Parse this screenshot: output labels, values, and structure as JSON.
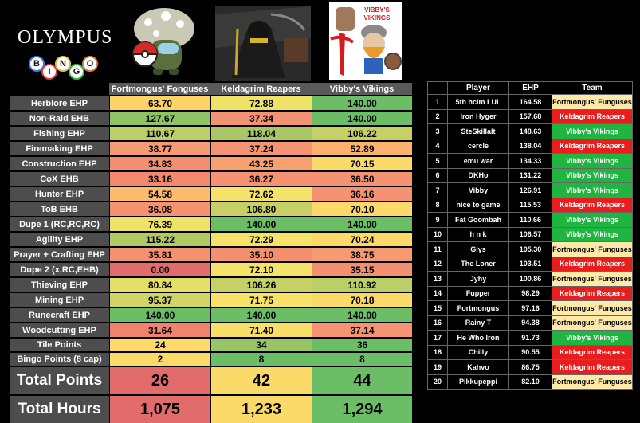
{
  "logo": {
    "word": "OLYMPUS",
    "balls": [
      "B",
      "I",
      "N",
      "G",
      "O"
    ]
  },
  "team_images": [
    {
      "name": "Fortmongus' Fonguses logo"
    },
    {
      "name": "Keldagrim Reapers logo"
    },
    {
      "name": "Vibby's Vikings logo",
      "caption": "VIBBY'S VIKINGS"
    }
  ],
  "teams": [
    "Fortmongus' Fonguses",
    "Keldagrim Reapers",
    "Vibby's Vikings"
  ],
  "rows": [
    {
      "label": "Herblore EHP",
      "values": [
        "63.70",
        "72.88",
        "140.00"
      ],
      "colors": [
        "#fdd365",
        "#eee366",
        "#6bbe66"
      ]
    },
    {
      "label": "Non-Raid EHB",
      "values": [
        "127.67",
        "37.34",
        "140.00"
      ],
      "colors": [
        "#8fc464",
        "#f29474",
        "#6bbe66"
      ]
    },
    {
      "label": "Fishing EHP",
      "values": [
        "110.67",
        "118.04",
        "106.22"
      ],
      "colors": [
        "#bcce67",
        "#a9c865",
        "#c6d067"
      ]
    },
    {
      "label": "Firemaking EHP",
      "values": [
        "38.77",
        "37.24",
        "52.89"
      ],
      "colors": [
        "#f59a73",
        "#f49472",
        "#fcb16c"
      ]
    },
    {
      "label": "Construction EHP",
      "values": [
        "34.83",
        "43.25",
        "70.15"
      ],
      "colors": [
        "#f39070",
        "#f6a16f",
        "#fcda69"
      ]
    },
    {
      "label": "CoX EHB",
      "values": [
        "33.16",
        "36.27",
        "36.50"
      ],
      "colors": [
        "#f2896f",
        "#f49272",
        "#f49372"
      ]
    },
    {
      "label": "Hunter EHP",
      "values": [
        "54.58",
        "72.62",
        "36.16"
      ],
      "colors": [
        "#fcbc6c",
        "#f5e369",
        "#f49272"
      ]
    },
    {
      "label": "ToB EHB",
      "values": [
        "36.08",
        "106.80",
        "70.10"
      ],
      "colors": [
        "#f49272",
        "#c6d067",
        "#fcda69"
      ]
    },
    {
      "label": "Dupe 1 (RC,RC,RC)",
      "values": [
        "76.39",
        "140.00",
        "140.00"
      ],
      "colors": [
        "#eee366",
        "#6bbe66",
        "#6bbe66"
      ]
    },
    {
      "label": "Agility EHP",
      "values": [
        "115.22",
        "72.29",
        "70.24"
      ],
      "colors": [
        "#b1ca66",
        "#f5e369",
        "#fcda69"
      ]
    },
    {
      "label": "Prayer + Crafting EHP",
      "values": [
        "35.81",
        "35.10",
        "38.75"
      ],
      "colors": [
        "#f49171",
        "#f39070",
        "#f59a73"
      ]
    },
    {
      "label": "Dupe 2 (x,RC,EHB)",
      "values": [
        "0.00",
        "72.10",
        "35.15"
      ],
      "colors": [
        "#e26c6c",
        "#f5e369",
        "#f39070"
      ]
    },
    {
      "label": "Thieving EHP",
      "values": [
        "80.84",
        "106.26",
        "110.92"
      ],
      "colors": [
        "#e5de66",
        "#c6d067",
        "#bcce67"
      ]
    },
    {
      "label": "Mining EHP",
      "values": [
        "95.37",
        "71.75",
        "70.18"
      ],
      "colors": [
        "#d2d467",
        "#f7e169",
        "#fcda69"
      ]
    },
    {
      "label": "Runecraft EHP",
      "values": [
        "140.00",
        "140.00",
        "140.00"
      ],
      "colors": [
        "#6bbe66",
        "#6bbe66",
        "#6bbe66"
      ]
    },
    {
      "label": "Woodcutting EHP",
      "values": [
        "31.64",
        "71.40",
        "37.14"
      ],
      "colors": [
        "#f1836e",
        "#f8df69",
        "#f49472"
      ]
    },
    {
      "label": "Tile Points",
      "values": [
        "24",
        "34",
        "36"
      ],
      "colors": [
        "#fcda69",
        "#97c566",
        "#6bbe66"
      ],
      "small": true
    },
    {
      "label": "Bingo Points (8 cap)",
      "values": [
        "2",
        "8",
        "8"
      ],
      "colors": [
        "#fcda69",
        "#6bbe66",
        "#6bbe66"
      ],
      "small": true
    },
    {
      "label": "Total Points",
      "values": [
        "26",
        "42",
        "44"
      ],
      "colors": [
        "#e26c6c",
        "#fcda69",
        "#6bbe66"
      ],
      "big": true
    },
    {
      "label": "Total Hours",
      "values": [
        "1,075",
        "1,233",
        "1,294"
      ],
      "colors": [
        "#e26c6c",
        "#fcda69",
        "#6bbe66"
      ],
      "big": true
    }
  ],
  "leaderboard": {
    "headers": [
      "Player",
      "EHP",
      "Team"
    ],
    "rows": [
      {
        "rank": "1",
        "player": "5th hcim LUL",
        "ehp": "164.58",
        "team": "Fortmongus' Funguses",
        "t": "f"
      },
      {
        "rank": "2",
        "player": "Iron Hyger",
        "ehp": "157.68",
        "team": "Keldagrim Reapers",
        "t": "k"
      },
      {
        "rank": "3",
        "player": "SteSkillalt",
        "ehp": "148.63",
        "team": "Vibby's Vikings",
        "t": "v"
      },
      {
        "rank": "4",
        "player": "cercle",
        "ehp": "138.04",
        "team": "Keldagrim Reapers",
        "t": "k"
      },
      {
        "rank": "5",
        "player": "emu war",
        "ehp": "134.33",
        "team": "Vibby's Vikings",
        "t": "v"
      },
      {
        "rank": "6",
        "player": "DKHo",
        "ehp": "131.22",
        "team": "Vibby's Vikings",
        "t": "v"
      },
      {
        "rank": "7",
        "player": "Vibby",
        "ehp": "126.91",
        "team": "Vibby's Vikings",
        "t": "v"
      },
      {
        "rank": "8",
        "player": "nice to game",
        "ehp": "115.53",
        "team": "Keldagrim Reapers",
        "t": "k"
      },
      {
        "rank": "9",
        "player": "Fat Goombah",
        "ehp": "110.66",
        "team": "Vibby's Vikings",
        "t": "v"
      },
      {
        "rank": "10",
        "player": "h n k",
        "ehp": "106.57",
        "team": "Vibby's Vikings",
        "t": "v"
      },
      {
        "rank": "11",
        "player": "Glys",
        "ehp": "105.30",
        "team": "Fortmongus' Funguses",
        "t": "f"
      },
      {
        "rank": "12",
        "player": "The Loner",
        "ehp": "103.51",
        "team": "Keldagrim Reapers",
        "t": "k"
      },
      {
        "rank": "13",
        "player": "Jyhy",
        "ehp": "100.86",
        "team": "Fortmongus' Funguses",
        "t": "f"
      },
      {
        "rank": "14",
        "player": "Fupper",
        "ehp": "98.29",
        "team": "Keldagrim Reapers",
        "t": "k"
      },
      {
        "rank": "15",
        "player": "Fortmongus",
        "ehp": "97.16",
        "team": "Fortmongus' Funguses",
        "t": "f"
      },
      {
        "rank": "16",
        "player": "Rainy T",
        "ehp": "94.38",
        "team": "Fortmongus' Funguses",
        "t": "f"
      },
      {
        "rank": "17",
        "player": "He Who Iron",
        "ehp": "91.73",
        "team": "Vibby's Vikings",
        "t": "v"
      },
      {
        "rank": "18",
        "player": "Chilly",
        "ehp": "90.55",
        "team": "Keldagrim Reapers",
        "t": "k"
      },
      {
        "rank": "19",
        "player": "Kahvo",
        "ehp": "86.75",
        "team": "Keldagrim Reapers",
        "t": "k"
      },
      {
        "rank": "20",
        "player": "Pikkupeppi",
        "ehp": "82.10",
        "team": "Fortmongus' Funguses",
        "t": "f"
      }
    ]
  }
}
